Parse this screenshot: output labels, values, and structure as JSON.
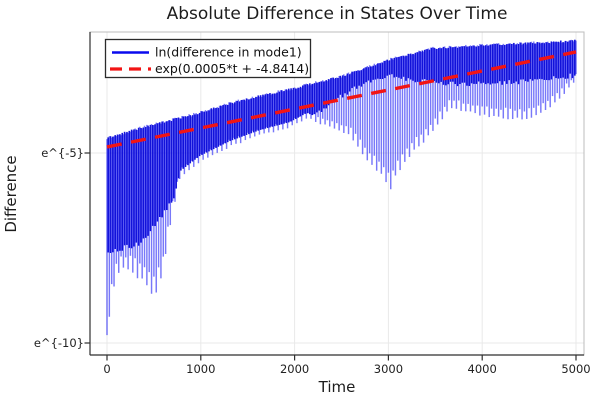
{
  "title": "Absolute Difference in States Over Time",
  "axes": {
    "xlabel": "Time",
    "ylabel": "Difference",
    "x_tick_labels": [
      "0",
      "1000",
      "2000",
      "3000",
      "4000",
      "5000"
    ],
    "y_tick_labels": [
      "e^{-5}",
      "e^{-10}"
    ]
  },
  "legend": {
    "items": [
      {
        "label": "ln(difference in mode1)",
        "color": "#0a0aee",
        "style": "solid"
      },
      {
        "label": "exp(0.0005*t + -4.8414)",
        "color": "#f21414",
        "style": "dashed"
      }
    ]
  },
  "colors": {
    "signal_light": "rgba(30,30,245,0.60)",
    "signal_dark": "rgba(0,0,215,0.92)",
    "grid": "#e9e9e9",
    "frame": "#bdbdbd",
    "axis": "#2f2f2f",
    "text": "#1c1c1c"
  },
  "chart_data": {
    "type": "line",
    "title": "Absolute Difference in States Over Time",
    "xlabel": "Time",
    "ylabel": "Difference",
    "x_ticks": [
      0,
      1000,
      2000,
      3000,
      4000,
      5000
    ],
    "y_ticks_ln": [
      -5,
      -10
    ],
    "y_tick_labels": [
      "e^{-5}",
      "e^{-10}"
    ],
    "y_scale": "ln",
    "xlim": [
      -180,
      5130
    ],
    "ylim_ln": [
      -10.32,
      -1.84
    ],
    "grid": true,
    "legend_position": "top-left",
    "series": [
      {
        "name": "ln(difference in mode1)",
        "color": "#0a0aee",
        "style": "solid",
        "note": "rapidly oscillating signal shown by its envelopes in ln-units vs t",
        "upper_envelope_ln": [
          [
            0,
            -4.61
          ],
          [
            350,
            -4.34
          ],
          [
            900,
            -4.0
          ],
          [
            1400,
            -3.63
          ],
          [
            1950,
            -3.32
          ],
          [
            2500,
            -2.98
          ],
          [
            3000,
            -2.55
          ],
          [
            3450,
            -2.25
          ],
          [
            4100,
            -2.15
          ],
          [
            4600,
            -2.1
          ],
          [
            5000,
            -2.04
          ]
        ],
        "lower_envelope_ln": [
          [
            0,
            -10.11
          ],
          [
            30,
            -8.9
          ],
          [
            85,
            -8.16
          ],
          [
            160,
            -7.87
          ],
          [
            245,
            -7.92
          ],
          [
            350,
            -8.08
          ],
          [
            460,
            -8.39
          ],
          [
            520,
            -8.53
          ],
          [
            600,
            -7.87
          ],
          [
            690,
            -6.5
          ],
          [
            780,
            -5.53
          ],
          [
            990,
            -5.13
          ],
          [
            1310,
            -4.74
          ],
          [
            1630,
            -4.45
          ],
          [
            1950,
            -4.24
          ],
          [
            2130,
            -4.0
          ],
          [
            2320,
            -4.18
          ],
          [
            2590,
            -4.42
          ],
          [
            2800,
            -5.13
          ],
          [
            2940,
            -5.45
          ],
          [
            3017,
            -5.79
          ],
          [
            3090,
            -5.39
          ],
          [
            3230,
            -4.92
          ],
          [
            3440,
            -4.39
          ],
          [
            3660,
            -3.7
          ],
          [
            3920,
            -3.85
          ],
          [
            4190,
            -3.95
          ],
          [
            4460,
            -4.0
          ],
          [
            4720,
            -3.7
          ],
          [
            4970,
            -3.1
          ],
          [
            5000,
            -3.03
          ]
        ],
        "dense_band_bottom_ln": [
          [
            0,
            -7.6
          ],
          [
            350,
            -7.4
          ],
          [
            600,
            -6.6
          ],
          [
            800,
            -5.9
          ],
          [
            1000,
            -5.25
          ],
          [
            1300,
            -4.85
          ],
          [
            1600,
            -4.55
          ],
          [
            1950,
            -4.3
          ],
          [
            2200,
            -4.05
          ],
          [
            2500,
            -3.5
          ],
          [
            2800,
            -3.1
          ],
          [
            3000,
            -2.95
          ],
          [
            3200,
            -3.05
          ],
          [
            3500,
            -3.15
          ],
          [
            3800,
            -3.2
          ],
          [
            4200,
            -3.15
          ],
          [
            4600,
            -3.1
          ],
          [
            5000,
            -2.95
          ]
        ]
      },
      {
        "name": "exp(0.0005*t + -4.8414)",
        "color": "#f21414",
        "style": "dashed",
        "slope": 0.0005,
        "intercept": -4.8414,
        "points_ln": [
          [
            0,
            -4.8414
          ],
          [
            5000,
            -2.3414
          ]
        ]
      }
    ]
  }
}
